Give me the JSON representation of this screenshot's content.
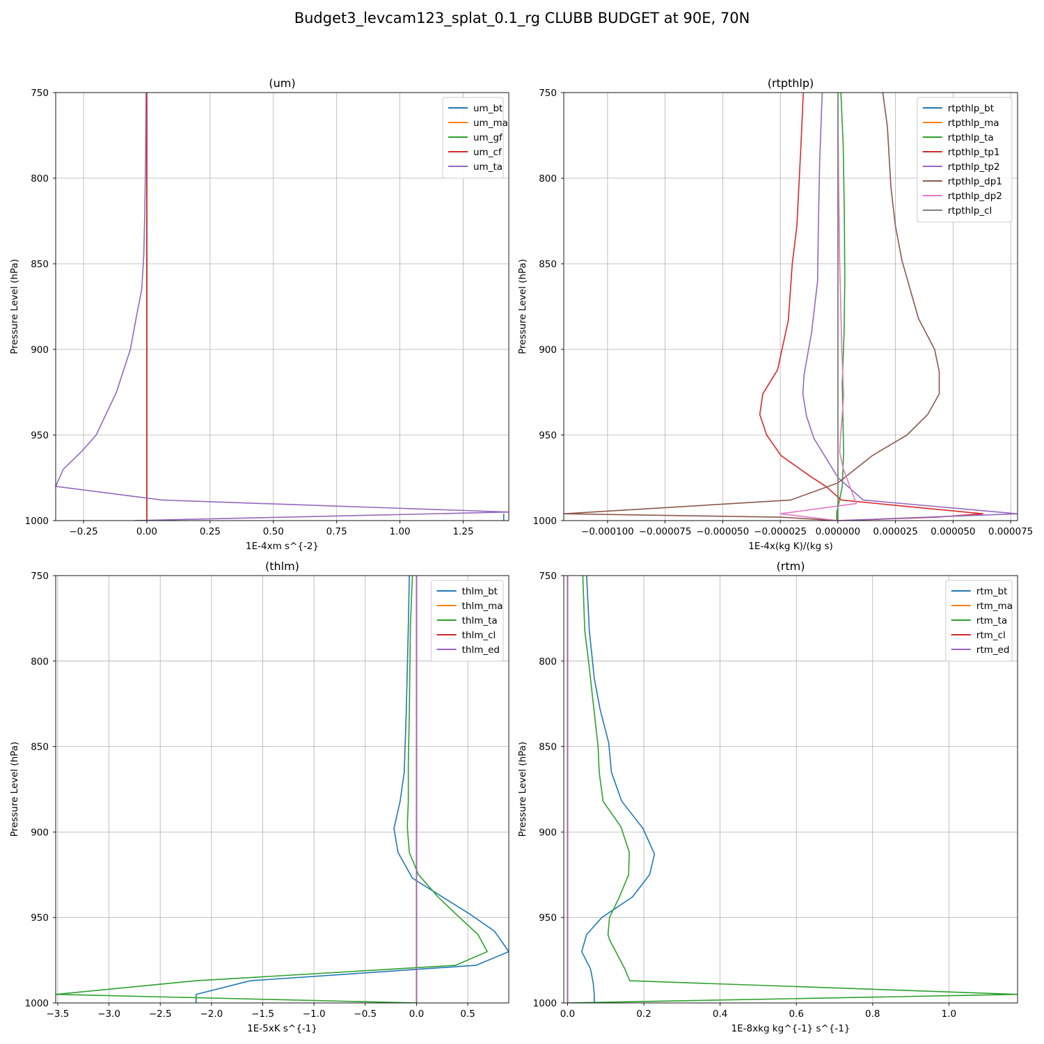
{
  "figure": {
    "title": "Budget3_levcam123_splat_0.1_rg CLUBB BUDGET at 90E, 70N"
  },
  "chart_data": [
    {
      "type": "line",
      "title": "(um)",
      "xlabel": "1E-4xm s^{-2}",
      "ylabel": "Pressure Level (hPa)",
      "xlim": [
        -0.36,
        1.43
      ],
      "ylim": [
        1000,
        750
      ],
      "y_inverted": true,
      "xticks": [
        -0.25,
        0.0,
        0.25,
        0.5,
        0.75,
        1.0,
        1.25
      ],
      "xtick_labels": [
        "−0.25",
        "0.00",
        "0.25",
        "0.50",
        "0.75",
        "1.00",
        "1.25"
      ],
      "yticks": [
        750,
        800,
        850,
        900,
        950,
        1000
      ],
      "ytick_labels": [
        "750",
        "800",
        "850",
        "900",
        "950",
        "1000"
      ],
      "grid": true,
      "legend": "upper right",
      "series": [
        {
          "name": "um_bt",
          "color": "#1f77b4",
          "x": [
            1.41,
            1.41
          ],
          "y": [
            1000,
            996
          ]
        },
        {
          "name": "um_ma",
          "color": "#ff7f0e",
          "x": [
            0,
            0
          ],
          "y": [
            750,
            1000
          ]
        },
        {
          "name": "um_gf",
          "color": "#2ca02c",
          "x": [
            0,
            0
          ],
          "y": [
            750,
            1000
          ]
        },
        {
          "name": "um_cf",
          "color": "#d62728",
          "x": [
            0,
            0
          ],
          "y": [
            750,
            1000
          ]
        },
        {
          "name": "um_ta",
          "color": "#9467bd",
          "x": [
            -0.003,
            -0.005,
            -0.008,
            -0.012,
            -0.02,
            -0.04,
            -0.065,
            -0.12,
            -0.2,
            -0.26,
            -0.33,
            -0.36,
            0.06,
            1.43,
            -0.05
          ],
          "y": [
            750,
            790,
            820,
            845,
            865,
            880,
            900,
            925,
            950,
            960,
            970,
            980,
            988,
            995,
            1000
          ]
        }
      ]
    },
    {
      "type": "line",
      "title": "(rtpthlp)",
      "xlabel": "1E-4x(kg K)/(kg s)",
      "ylabel": "Pressure Level (hPa)",
      "xlim": [
        -0.000119,
        7.8e-05
      ],
      "ylim": [
        1000,
        750
      ],
      "y_inverted": true,
      "xticks": [
        -0.0001,
        -7.5e-05,
        -5e-05,
        -2.5e-05,
        0.0,
        2.5e-05,
        5e-05,
        7.5e-05
      ],
      "xtick_labels": [
        "−0.000100",
        "−0.000075",
        "−0.000050",
        "−0.000025",
        "0.000000",
        "0.000025",
        "0.000050",
        "0.000075"
      ],
      "yticks": [
        750,
        800,
        850,
        900,
        950,
        1000
      ],
      "ytick_labels": [
        "750",
        "800",
        "850",
        "900",
        "950",
        "1000"
      ],
      "grid": true,
      "legend": "upper right",
      "series": [
        {
          "name": "rtpthlp_bt",
          "color": "#1f77b4",
          "x": [
            0,
            0
          ],
          "y": [
            750,
            1000
          ]
        },
        {
          "name": "rtpthlp_ma",
          "color": "#ff7f0e",
          "x": [
            0,
            0
          ],
          "y": [
            750,
            1000
          ]
        },
        {
          "name": "rtpthlp_ta",
          "color": "#2ca02c",
          "x": [
            1.3e-06,
            2.3e-06,
            2.8e-06,
            3e-06,
            2.7e-06,
            1.9e-06,
            2.2e-06,
            2.5e-06,
            1.9e-06,
            4e-07,
            -5e-07,
            -5e-07
          ],
          "y": [
            750,
            780,
            820,
            860,
            890,
            920,
            940,
            960,
            980,
            990,
            995,
            1000
          ]
        },
        {
          "name": "rtpthlp_tp1",
          "color": "#d62728",
          "x": [
            -1.5e-05,
            -1.6e-05,
            -1.78e-05,
            -1.98e-05,
            -2.15e-05,
            -2.62e-05,
            -3.26e-05,
            -3.39e-05,
            -3.09e-05,
            -2.47e-05,
            -1.21e-05,
            -5.2e-06,
            1.5e-06,
            6.3e-05,
            4.3e-05,
            5e-07
          ],
          "y": [
            750,
            780,
            828,
            850,
            883,
            912,
            926,
            938,
            950,
            962,
            974,
            980,
            988,
            996,
            998,
            1000
          ]
        },
        {
          "name": "rtpthlp_tp2",
          "color": "#9467bd",
          "x": [
            -6.8e-06,
            -7.9e-06,
            -8.5e-06,
            -8.8e-06,
            -1.14e-05,
            -1.47e-05,
            -1.52e-05,
            -1.36e-05,
            -1.04e-05,
            -4.9e-06,
            1e-07,
            1.1e-05,
            7.8e-05,
            0.0
          ],
          "y": [
            750,
            790,
            830,
            860,
            890,
            915,
            926,
            939,
            952,
            964,
            975,
            988,
            996,
            1000
          ]
        },
        {
          "name": "rtpthlp_dp1",
          "color": "#8c564b",
          "x": [
            1.95e-05,
            2.15e-05,
            2.3e-05,
            2.5e-05,
            2.78e-05,
            3.5e-05,
            4.2e-05,
            4.4e-05,
            4.4e-05,
            3.9e-05,
            3e-05,
            1.5e-05,
            0.0,
            -2.05e-05,
            -0.000119,
            -2.45e-05,
            0.0
          ],
          "y": [
            750,
            770,
            805,
            828,
            848,
            882,
            900,
            913,
            926,
            938,
            950,
            962,
            978,
            988,
            996,
            998,
            1000
          ]
        },
        {
          "name": "rtpthlp_dp2",
          "color": "#e377c2",
          "x": [
            0.0,
            3e-07,
            8e-07,
            1.7e-06,
            2.5e-06,
            1.8e-06,
            1.2e-06,
            8e-07,
            2.4e-06,
            8e-06,
            -2.5e-05,
            0.0
          ],
          "y": [
            750,
            800,
            850,
            900,
            927,
            940,
            950,
            960,
            970,
            990,
            996,
            1000
          ]
        },
        {
          "name": "rtpthlp_cl",
          "color": "#7f7f7f",
          "x": [
            0,
            0
          ],
          "y": [
            750,
            1000
          ]
        }
      ]
    },
    {
      "type": "line",
      "title": "(thlm)",
      "xlabel": "1E-5xK s^{-1}",
      "ylabel": "Pressure Level (hPa)",
      "xlim": [
        -3.52,
        0.9
      ],
      "ylim": [
        1000,
        750
      ],
      "y_inverted": true,
      "xticks": [
        -3.5,
        -3.0,
        -2.5,
        -2.0,
        -1.5,
        -1.0,
        -0.5,
        0.0,
        0.5
      ],
      "xtick_labels": [
        "−3.5",
        "−3.0",
        "−2.5",
        "−2.0",
        "−1.5",
        "−1.0",
        "−0.5",
        "0.0",
        "0.5"
      ],
      "yticks": [
        750,
        800,
        850,
        900,
        950,
        1000
      ],
      "ytick_labels": [
        "750",
        "800",
        "850",
        "900",
        "950",
        "1000"
      ],
      "grid": true,
      "legend": "upper right",
      "series": [
        {
          "name": "thlm_bt",
          "color": "#1f77b4",
          "x": [
            -0.07,
            -0.08,
            -0.1,
            -0.12,
            -0.16,
            -0.22,
            -0.18,
            -0.04,
            0.52,
            0.76,
            0.9,
            0.58,
            -1.62,
            -2.15,
            -2.15
          ],
          "y": [
            750,
            780,
            830,
            865,
            882,
            898,
            912,
            927,
            948,
            958,
            970,
            978,
            987,
            995,
            1000
          ]
        },
        {
          "name": "thlm_ma",
          "color": "#ff7f0e",
          "x": [
            0,
            0
          ],
          "y": [
            750,
            1000
          ]
        },
        {
          "name": "thlm_ta",
          "color": "#2ca02c",
          "x": [
            -0.04,
            -0.06,
            -0.07,
            -0.08,
            -0.08,
            -0.09,
            -0.07,
            0.02,
            0.21,
            0.42,
            0.6,
            0.69,
            0.38,
            -1.58,
            -2.15,
            -3.52,
            0.0
          ],
          "y": [
            750,
            780,
            830,
            860,
            882,
            897,
            912,
            925,
            938,
            950,
            960,
            970,
            978,
            985,
            987,
            995,
            1000
          ]
        },
        {
          "name": "thlm_cl",
          "color": "#d62728",
          "x": [
            0,
            0
          ],
          "y": [
            750,
            1000
          ]
        },
        {
          "name": "thlm_ed",
          "color": "#9467bd",
          "x": [
            0,
            0
          ],
          "y": [
            750,
            1000
          ]
        }
      ]
    },
    {
      "type": "line",
      "title": "(rtm)",
      "xlabel": "1E-8xkg kg^{-1} s^{-1}",
      "ylabel": "Pressure Level (hPa)",
      "xlim": [
        -0.01,
        1.18
      ],
      "ylim": [
        1000,
        750
      ],
      "y_inverted": true,
      "xticks": [
        0.0,
        0.2,
        0.4,
        0.6,
        0.8,
        1.0
      ],
      "xtick_labels": [
        "0.0",
        "0.2",
        "0.4",
        "0.6",
        "0.8",
        "1.0"
      ],
      "yticks": [
        750,
        800,
        850,
        900,
        950,
        1000
      ],
      "ytick_labels": [
        "750",
        "800",
        "850",
        "900",
        "950",
        "1000"
      ],
      "grid": true,
      "legend": "upper right",
      "series": [
        {
          "name": "rtm_bt",
          "color": "#1f77b4",
          "x": [
            0.05,
            0.057,
            0.07,
            0.085,
            0.108,
            0.115,
            0.142,
            0.198,
            0.228,
            0.215,
            0.17,
            0.09,
            0.05,
            0.037,
            0.06,
            0.067,
            0.07,
            0.07
          ],
          "y": [
            750,
            782,
            810,
            828,
            848,
            865,
            882,
            898,
            913,
            925,
            938,
            950,
            960,
            970,
            980,
            988,
            995,
            1000
          ]
        },
        {
          "name": "rtm_ma",
          "color": "#ff7f0e",
          "x": [
            0,
            0
          ],
          "y": [
            750,
            1000
          ]
        },
        {
          "name": "rtm_ta",
          "color": "#2ca02c",
          "x": [
            0.04,
            0.045,
            0.055,
            0.07,
            0.08,
            0.083,
            0.093,
            0.14,
            0.162,
            0.16,
            0.136,
            0.11,
            0.106,
            0.11,
            0.15,
            0.163,
            1.18,
            0.0
          ],
          "y": [
            750,
            782,
            800,
            830,
            850,
            865,
            882,
            897,
            912,
            925,
            938,
            950,
            960,
            963,
            980,
            987,
            995,
            1000
          ]
        },
        {
          "name": "rtm_cl",
          "color": "#d62728",
          "x": [
            0,
            0
          ],
          "y": [
            750,
            1000
          ]
        },
        {
          "name": "rtm_ed",
          "color": "#9467bd",
          "x": [
            0,
            0
          ],
          "y": [
            750,
            1000
          ]
        }
      ]
    }
  ]
}
